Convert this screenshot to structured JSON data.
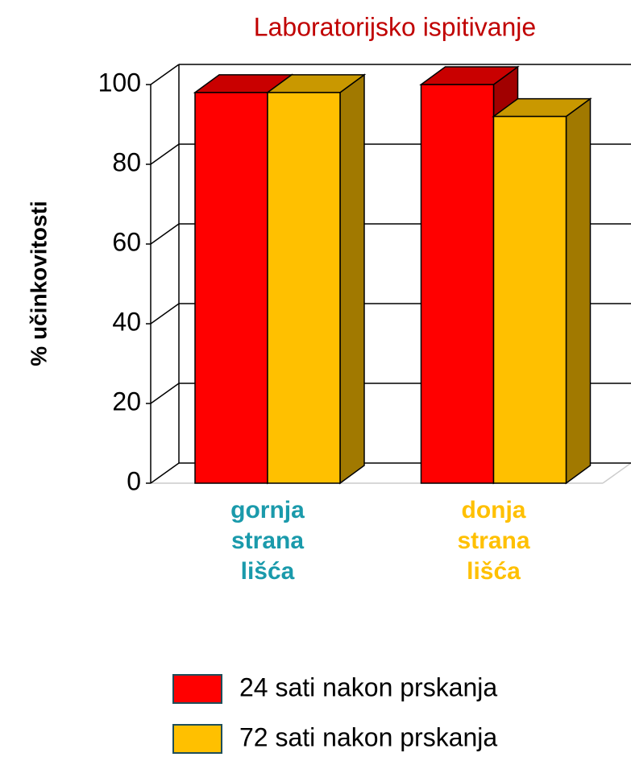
{
  "chart_data": {
    "type": "bar3d",
    "title": "Laboratorijsko ispitivanje",
    "y_label": "% učinkovitosti",
    "categories": [
      "gornja strana lišća",
      "donja strana lišća"
    ],
    "category_colors": [
      "#1a9aab",
      "#ffc000"
    ],
    "series": [
      {
        "name": "24 sati nakon prskanja",
        "color": "#ff0000",
        "values": [
          98,
          100
        ]
      },
      {
        "name": "72 sati nakon prskanja",
        "color": "#ffc000",
        "values": [
          98,
          92
        ]
      }
    ],
    "ylim": [
      0,
      100
    ],
    "yticks": [
      0,
      20,
      40,
      60,
      80,
      100
    ],
    "grid": true
  }
}
